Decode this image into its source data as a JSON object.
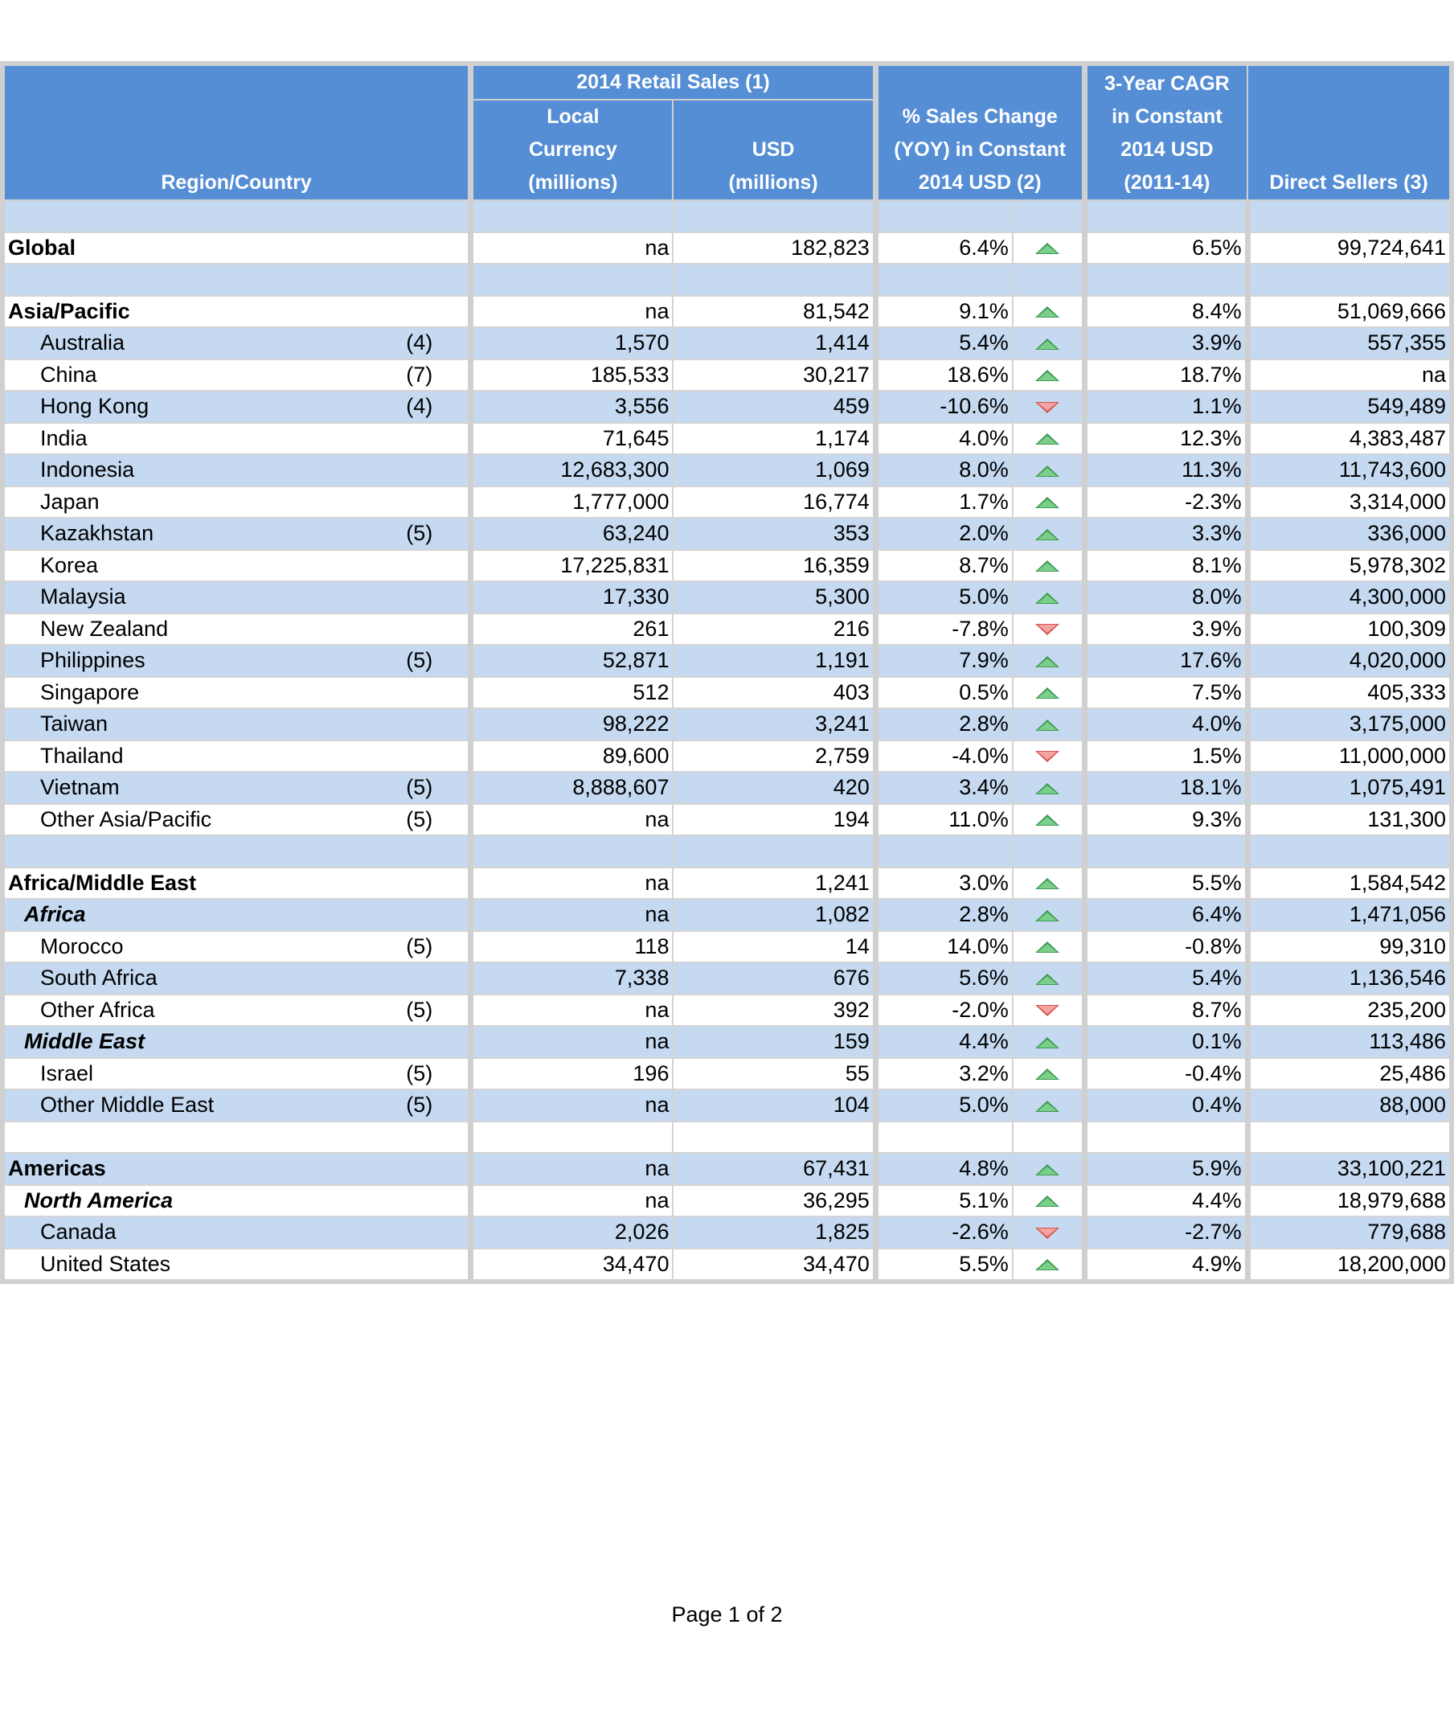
{
  "header": {
    "region": "Region/Country",
    "retail_sales_group": "2014 Retail Sales (1)",
    "local_currency": [
      "Local",
      "Currency",
      "(millions)"
    ],
    "usd": [
      "USD",
      "(millions)"
    ],
    "pct_change": [
      "% Sales Change",
      "(YOY) in Constant",
      "2014 USD (2)"
    ],
    "cagr": [
      "3-Year CAGR",
      "in Constant",
      "2014 USD",
      "(2011-14)"
    ],
    "direct_sellers": "Direct Sellers (3)"
  },
  "colors": {
    "header": "#558ED5",
    "band": "#C5D9F1",
    "up": "#3E9A52",
    "down": "#D9534F",
    "grid": "#D0D0D0"
  },
  "rows": [
    {
      "level": "blank"
    },
    {
      "level": "region",
      "name": "Global",
      "note": "",
      "local": "na",
      "usd": "182,823",
      "pct": "6.4%",
      "trend": "up",
      "cagr": "6.5%",
      "sellers": "99,724,641"
    },
    {
      "level": "blank"
    },
    {
      "level": "region",
      "name": "Asia/Pacific",
      "note": "",
      "local": "na",
      "usd": "81,542",
      "pct": "9.1%",
      "trend": "up",
      "cagr": "8.4%",
      "sellers": "51,069,666"
    },
    {
      "level": "country",
      "name": "Australia",
      "note": "(4)",
      "local": "1,570",
      "usd": "1,414",
      "pct": "5.4%",
      "trend": "up",
      "cagr": "3.9%",
      "sellers": "557,355"
    },
    {
      "level": "country",
      "name": "China",
      "note": "(7)",
      "local": "185,533",
      "usd": "30,217",
      "pct": "18.6%",
      "trend": "up",
      "cagr": "18.7%",
      "sellers": "na"
    },
    {
      "level": "country",
      "name": "Hong Kong",
      "note": "(4)",
      "local": "3,556",
      "usd": "459",
      "pct": "-10.6%",
      "trend": "down",
      "cagr": "1.1%",
      "sellers": "549,489"
    },
    {
      "level": "country",
      "name": "India",
      "note": "",
      "local": "71,645",
      "usd": "1,174",
      "pct": "4.0%",
      "trend": "up",
      "cagr": "12.3%",
      "sellers": "4,383,487"
    },
    {
      "level": "country",
      "name": "Indonesia",
      "note": "",
      "local": "12,683,300",
      "usd": "1,069",
      "pct": "8.0%",
      "trend": "up",
      "cagr": "11.3%",
      "sellers": "11,743,600"
    },
    {
      "level": "country",
      "name": "Japan",
      "note": "",
      "local": "1,777,000",
      "usd": "16,774",
      "pct": "1.7%",
      "trend": "up",
      "cagr": "-2.3%",
      "sellers": "3,314,000"
    },
    {
      "level": "country",
      "name": "Kazakhstan",
      "note": "(5)",
      "local": "63,240",
      "usd": "353",
      "pct": "2.0%",
      "trend": "up",
      "cagr": "3.3%",
      "sellers": "336,000"
    },
    {
      "level": "country",
      "name": "Korea",
      "note": "",
      "local": "17,225,831",
      "usd": "16,359",
      "pct": "8.7%",
      "trend": "up",
      "cagr": "8.1%",
      "sellers": "5,978,302"
    },
    {
      "level": "country",
      "name": "Malaysia",
      "note": "",
      "local": "17,330",
      "usd": "5,300",
      "pct": "5.0%",
      "trend": "up",
      "cagr": "8.0%",
      "sellers": "4,300,000"
    },
    {
      "level": "country",
      "name": "New Zealand",
      "note": "",
      "local": "261",
      "usd": "216",
      "pct": "-7.8%",
      "trend": "down",
      "cagr": "3.9%",
      "sellers": "100,309"
    },
    {
      "level": "country",
      "name": "Philippines",
      "note": "(5)",
      "local": "52,871",
      "usd": "1,191",
      "pct": "7.9%",
      "trend": "up",
      "cagr": "17.6%",
      "sellers": "4,020,000"
    },
    {
      "level": "country",
      "name": "Singapore",
      "note": "",
      "local": "512",
      "usd": "403",
      "pct": "0.5%",
      "trend": "up",
      "cagr": "7.5%",
      "sellers": "405,333"
    },
    {
      "level": "country",
      "name": "Taiwan",
      "note": "",
      "local": "98,222",
      "usd": "3,241",
      "pct": "2.8%",
      "trend": "up",
      "cagr": "4.0%",
      "sellers": "3,175,000"
    },
    {
      "level": "country",
      "name": "Thailand",
      "note": "",
      "local": "89,600",
      "usd": "2,759",
      "pct": "-4.0%",
      "trend": "down",
      "cagr": "1.5%",
      "sellers": "11,000,000"
    },
    {
      "level": "country",
      "name": "Vietnam",
      "note": "(5)",
      "local": "8,888,607",
      "usd": "420",
      "pct": "3.4%",
      "trend": "up",
      "cagr": "18.1%",
      "sellers": "1,075,491"
    },
    {
      "level": "country",
      "name": "Other Asia/Pacific",
      "note": "(5)",
      "local": "na",
      "usd": "194",
      "pct": "11.0%",
      "trend": "up",
      "cagr": "9.3%",
      "sellers": "131,300"
    },
    {
      "level": "blank"
    },
    {
      "level": "region",
      "name": "Africa/Middle East",
      "note": "",
      "local": "na",
      "usd": "1,241",
      "pct": "3.0%",
      "trend": "up",
      "cagr": "5.5%",
      "sellers": "1,584,542"
    },
    {
      "level": "subregion",
      "name": "Africa",
      "note": "",
      "local": "na",
      "usd": "1,082",
      "pct": "2.8%",
      "trend": "up",
      "cagr": "6.4%",
      "sellers": "1,471,056"
    },
    {
      "level": "country",
      "name": "Morocco",
      "note": "(5)",
      "local": "118",
      "usd": "14",
      "pct": "14.0%",
      "trend": "up",
      "cagr": "-0.8%",
      "sellers": "99,310"
    },
    {
      "level": "country",
      "name": "South Africa",
      "note": "",
      "local": "7,338",
      "usd": "676",
      "pct": "5.6%",
      "trend": "up",
      "cagr": "5.4%",
      "sellers": "1,136,546"
    },
    {
      "level": "country",
      "name": "Other Africa",
      "note": "(5)",
      "local": "na",
      "usd": "392",
      "pct": "-2.0%",
      "trend": "down",
      "cagr": "8.7%",
      "sellers": "235,200"
    },
    {
      "level": "subregion",
      "name": "Middle East",
      "note": "",
      "local": "na",
      "usd": "159",
      "pct": "4.4%",
      "trend": "up",
      "cagr": "0.1%",
      "sellers": "113,486"
    },
    {
      "level": "country",
      "name": "Israel",
      "note": "(5)",
      "local": "196",
      "usd": "55",
      "pct": "3.2%",
      "trend": "up",
      "cagr": "-0.4%",
      "sellers": "25,486"
    },
    {
      "level": "country",
      "name": "Other Middle East",
      "note": "(5)",
      "local": "na",
      "usd": "104",
      "pct": "5.0%",
      "trend": "up",
      "cagr": "0.4%",
      "sellers": "88,000"
    },
    {
      "level": "blank"
    },
    {
      "level": "region",
      "name": "Americas",
      "note": "",
      "local": "na",
      "usd": "67,431",
      "pct": "4.8%",
      "trend": "up",
      "cagr": "5.9%",
      "sellers": "33,100,221"
    },
    {
      "level": "subregion",
      "name": "North America",
      "note": "",
      "local": "na",
      "usd": "36,295",
      "pct": "5.1%",
      "trend": "up",
      "cagr": "4.4%",
      "sellers": "18,979,688"
    },
    {
      "level": "country",
      "name": "Canada",
      "note": "",
      "local": "2,026",
      "usd": "1,825",
      "pct": "-2.6%",
      "trend": "down",
      "cagr": "-2.7%",
      "sellers": "779,688"
    },
    {
      "level": "country",
      "name": "United States",
      "note": "",
      "local": "34,470",
      "usd": "34,470",
      "pct": "5.5%",
      "trend": "up",
      "cagr": "4.9%",
      "sellers": "18,200,000"
    }
  ],
  "footer": "Page 1 of 2"
}
